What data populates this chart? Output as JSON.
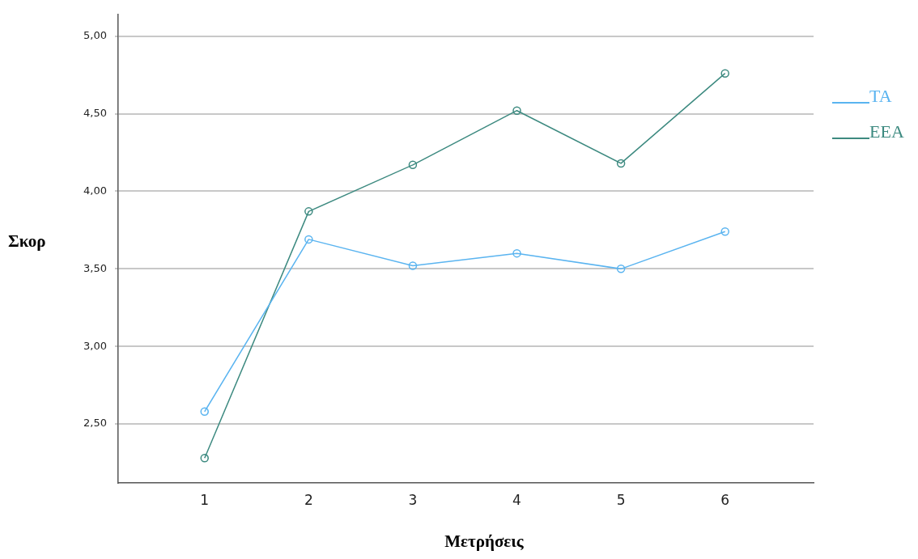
{
  "chart_data": {
    "type": "line",
    "xlabel": "Μετρήσεις",
    "ylabel": "Σκορ",
    "x": [
      1,
      2,
      3,
      4,
      5,
      6
    ],
    "xlim": [
      0.17,
      6.85
    ],
    "xticks": [
      1,
      2,
      3,
      4,
      5,
      6
    ],
    "ylim": [
      2.12,
      5.14
    ],
    "yticks": [
      {
        "value": 2.5,
        "label": "2,50"
      },
      {
        "value": 3,
        "label": "3,00"
      },
      {
        "value": 3.5,
        "label": "3,50"
      },
      {
        "value": 4,
        "label": "4,00"
      },
      {
        "value": 4.5,
        "label": "4,50"
      },
      {
        "value": 5,
        "label": "5,00"
      }
    ],
    "series": [
      {
        "name": "ΤΑ",
        "color": "#5ab4f0",
        "values": [
          2.58,
          3.69,
          3.52,
          3.6,
          3.5,
          3.74
        ]
      },
      {
        "name": "ΕΕΑ",
        "color": "#3d8a80",
        "values": [
          2.28,
          3.87,
          4.17,
          4.52,
          4.18,
          4.76
        ]
      }
    ],
    "grid": "y",
    "legend": "right",
    "marker": "circle",
    "line_style": "solid"
  }
}
